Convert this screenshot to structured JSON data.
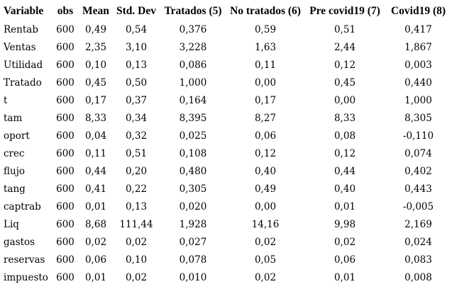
{
  "table": {
    "columns": [
      "Variable",
      "obs",
      "Mean",
      "Std. Dev",
      "Tratados (5)",
      "No tratados (6)",
      "Pre covid19 (7)",
      "Covid19 (8)"
    ],
    "rows": [
      {
        "variable": "Rentab",
        "obs": "600",
        "mean": "0,49",
        "std_dev": "0,54",
        "tratados": "0,376",
        "no_tratados": "0,59",
        "pre_covid19": "0,51",
        "covid19": "0,417"
      },
      {
        "variable": "Ventas",
        "obs": "600",
        "mean": "2,35",
        "std_dev": "3,10",
        "tratados": "3,228",
        "no_tratados": "1,63",
        "pre_covid19": "2,44",
        "covid19": "1,867"
      },
      {
        "variable": "Utilidad",
        "obs": "600",
        "mean": "0,10",
        "std_dev": "0,13",
        "tratados": "0,086",
        "no_tratados": "0,11",
        "pre_covid19": "0,12",
        "covid19": "0,003"
      },
      {
        "variable": "Tratado",
        "obs": "600",
        "mean": "0,45",
        "std_dev": "0,50",
        "tratados": "1,000",
        "no_tratados": "0,00",
        "pre_covid19": "0,45",
        "covid19": "0,440"
      },
      {
        "variable": "t",
        "obs": "600",
        "mean": "0,17",
        "std_dev": "0,37",
        "tratados": "0,164",
        "no_tratados": "0,17",
        "pre_covid19": "0,00",
        "covid19": "1,000"
      },
      {
        "variable": "tam",
        "obs": "600",
        "mean": "8,33",
        "std_dev": "0,34",
        "tratados": "8,395",
        "no_tratados": "8,27",
        "pre_covid19": "8,33",
        "covid19": "8,305"
      },
      {
        "variable": "oport",
        "obs": "600",
        "mean": "0,04",
        "std_dev": "0,32",
        "tratados": "0,025",
        "no_tratados": "0,06",
        "pre_covid19": "0,08",
        "covid19": "-0,110"
      },
      {
        "variable": "crec",
        "obs": "600",
        "mean": "0,11",
        "std_dev": "0,51",
        "tratados": "0,108",
        "no_tratados": "0,12",
        "pre_covid19": "0,12",
        "covid19": "0,074"
      },
      {
        "variable": "flujo",
        "obs": "600",
        "mean": "0,44",
        "std_dev": "0,20",
        "tratados": "0,480",
        "no_tratados": "0,40",
        "pre_covid19": "0,44",
        "covid19": "0,402"
      },
      {
        "variable": "tang",
        "obs": "600",
        "mean": "0,41",
        "std_dev": "0,22",
        "tratados": "0,305",
        "no_tratados": "0,49",
        "pre_covid19": "0,40",
        "covid19": "0,443"
      },
      {
        "variable": "captrab",
        "obs": "600",
        "mean": "0,01",
        "std_dev": "0,13",
        "tratados": "0,020",
        "no_tratados": "0,00",
        "pre_covid19": "0,01",
        "covid19": "-0,005"
      },
      {
        "variable": "Liq",
        "obs": "600",
        "mean": "8,68",
        "std_dev": "111,44",
        "tratados": "1,928",
        "no_tratados": "14,16",
        "pre_covid19": "9,98",
        "covid19": "2,169"
      },
      {
        "variable": "gastos",
        "obs": "600",
        "mean": "0,02",
        "std_dev": "0,02",
        "tratados": "0,027",
        "no_tratados": "0,02",
        "pre_covid19": "0,02",
        "covid19": "0,024"
      },
      {
        "variable": "reservas",
        "obs": "600",
        "mean": "0,06",
        "std_dev": "0,10",
        "tratados": "0,078",
        "no_tratados": "0,05",
        "pre_covid19": "0,06",
        "covid19": "0,083"
      },
      {
        "variable": "impuesto",
        "obs": "600",
        "mean": "0,01",
        "std_dev": "0,02",
        "tratados": "0,010",
        "no_tratados": "0,02",
        "pre_covid19": "0,01",
        "covid19": "0,008"
      }
    ]
  },
  "colors": {
    "background": "#ffffff",
    "text": "#000000"
  }
}
